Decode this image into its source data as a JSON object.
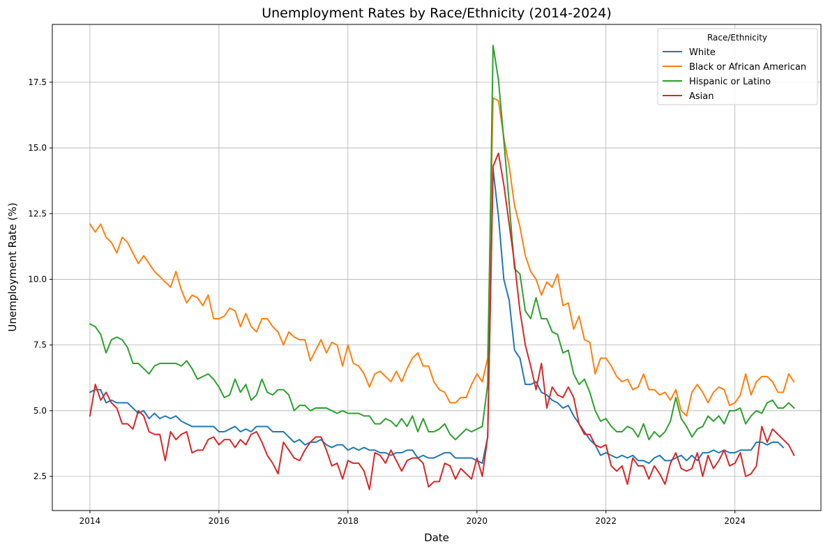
{
  "chart_data": {
    "type": "line",
    "title": "Unemployment Rates by Race/Ethnicity (2014-2024)",
    "xlabel": "Date",
    "ylabel": "Unemployment Rate (%)",
    "xlim": [
      "2013-06",
      "2025-05"
    ],
    "ylim": [
      1.2,
      19.7
    ],
    "x_ticks": [
      "2014",
      "2016",
      "2018",
      "2020",
      "2022",
      "2024"
    ],
    "y_ticks": [
      "2.5",
      "5.0",
      "7.5",
      "10.0",
      "12.5",
      "15.0",
      "17.5"
    ],
    "grid": true,
    "legend": {
      "title": "Race/Ethnicity",
      "position": "top-right"
    },
    "x_start": "2014-01",
    "x_frequency": "monthly",
    "series": [
      {
        "name": "White",
        "color": "#1f77b4",
        "values": [
          5.7,
          5.8,
          5.8,
          5.3,
          5.4,
          5.3,
          5.3,
          5.3,
          5.1,
          4.9,
          5.0,
          4.7,
          4.9,
          4.7,
          4.8,
          4.7,
          4.8,
          4.6,
          4.5,
          4.4,
          4.4,
          4.4,
          4.4,
          4.4,
          4.2,
          4.2,
          4.3,
          4.4,
          4.2,
          4.3,
          4.2,
          4.4,
          4.4,
          4.4,
          4.2,
          4.2,
          4.2,
          4.0,
          3.8,
          3.9,
          3.7,
          3.8,
          3.8,
          3.9,
          3.7,
          3.6,
          3.7,
          3.7,
          3.5,
          3.6,
          3.5,
          3.6,
          3.5,
          3.5,
          3.4,
          3.4,
          3.3,
          3.4,
          3.4,
          3.5,
          3.5,
          3.2,
          3.3,
          3.2,
          3.2,
          3.3,
          3.4,
          3.4,
          3.2,
          3.2,
          3.2,
          3.2,
          3.1,
          3.0,
          4.0,
          14.2,
          12.4,
          10.0,
          9.2,
          7.3,
          7.0,
          6.0,
          6.0,
          6.1,
          5.7,
          5.6,
          5.4,
          5.3,
          5.1,
          5.2,
          4.8,
          4.5,
          4.2,
          3.9,
          3.7,
          3.3,
          3.4,
          3.3,
          3.2,
          3.3,
          3.2,
          3.3,
          3.1,
          3.1,
          3.0,
          3.2,
          3.3,
          3.1,
          3.1,
          3.2,
          3.3,
          3.1,
          3.3,
          3.1,
          3.4,
          3.4,
          3.5,
          3.4,
          3.5,
          3.4,
          3.4,
          3.5,
          3.5,
          3.5,
          3.8,
          3.8,
          3.7,
          3.8,
          3.8,
          3.6
        ]
      },
      {
        "name": "Black or African American",
        "color": "#ff7f0e",
        "values": [
          12.1,
          11.8,
          12.1,
          11.6,
          11.4,
          11.0,
          11.6,
          11.4,
          11.0,
          10.6,
          10.9,
          10.6,
          10.3,
          10.1,
          9.9,
          9.7,
          10.3,
          9.6,
          9.1,
          9.4,
          9.3,
          9.0,
          9.4,
          8.5,
          8.5,
          8.6,
          8.9,
          8.8,
          8.2,
          8.7,
          8.2,
          8.0,
          8.5,
          8.5,
          8.2,
          8.0,
          7.5,
          8.0,
          7.8,
          7.7,
          7.7,
          6.9,
          7.3,
          7.7,
          7.2,
          7.6,
          7.5,
          6.7,
          7.5,
          6.8,
          6.7,
          6.4,
          5.9,
          6.4,
          6.5,
          6.3,
          6.1,
          6.5,
          6.1,
          6.6,
          7.0,
          7.2,
          6.7,
          6.7,
          6.1,
          5.8,
          5.7,
          5.3,
          5.3,
          5.5,
          5.5,
          6.0,
          6.4,
          6.1,
          7.0,
          16.9,
          16.8,
          15.4,
          14.3,
          12.8,
          12.0,
          10.9,
          10.3,
          10.0,
          9.4,
          9.9,
          9.7,
          10.2,
          9.0,
          9.1,
          8.1,
          8.6,
          7.7,
          7.6,
          6.4,
          7.0,
          7.0,
          6.7,
          6.3,
          6.1,
          6.2,
          5.8,
          5.9,
          6.4,
          5.8,
          5.8,
          5.6,
          5.7,
          5.4,
          5.8,
          5.0,
          4.8,
          5.7,
          6.0,
          5.7,
          5.3,
          5.7,
          5.9,
          5.8,
          5.2,
          5.3,
          5.6,
          6.4,
          5.6,
          6.1,
          6.3,
          6.3,
          6.1,
          5.7,
          5.7,
          6.4,
          6.1
        ]
      },
      {
        "name": "Hispanic or Latino",
        "color": "#2ca02c",
        "values": [
          8.3,
          8.2,
          7.9,
          7.2,
          7.7,
          7.8,
          7.7,
          7.4,
          6.8,
          6.8,
          6.6,
          6.4,
          6.7,
          6.8,
          6.8,
          6.8,
          6.8,
          6.7,
          6.9,
          6.6,
          6.2,
          6.3,
          6.4,
          6.2,
          5.9,
          5.5,
          5.6,
          6.2,
          5.7,
          6.0,
          5.4,
          5.6,
          6.2,
          5.7,
          5.6,
          5.8,
          5.8,
          5.6,
          5.0,
          5.2,
          5.2,
          5.0,
          5.1,
          5.1,
          5.1,
          5.0,
          4.9,
          5.0,
          4.9,
          4.9,
          4.9,
          4.8,
          4.8,
          4.5,
          4.5,
          4.7,
          4.6,
          4.4,
          4.7,
          4.4,
          4.8,
          4.2,
          4.7,
          4.2,
          4.2,
          4.3,
          4.5,
          4.1,
          3.9,
          4.1,
          4.3,
          4.2,
          4.3,
          4.4,
          6.0,
          18.9,
          17.6,
          15.3,
          12.9,
          10.4,
          10.2,
          8.8,
          8.5,
          9.3,
          8.5,
          8.5,
          8.0,
          7.9,
          7.2,
          7.3,
          6.4,
          6.0,
          6.2,
          5.7,
          5.0,
          4.6,
          4.7,
          4.4,
          4.2,
          4.2,
          4.4,
          4.3,
          4.0,
          4.5,
          3.9,
          4.2,
          4.0,
          4.2,
          4.6,
          5.5,
          4.7,
          4.4,
          4.0,
          4.3,
          4.4,
          4.8,
          4.6,
          4.8,
          4.5,
          5.0,
          5.0,
          5.1,
          4.5,
          4.8,
          5.0,
          4.9,
          5.3,
          5.4,
          5.1,
          5.1,
          5.3,
          5.1
        ]
      },
      {
        "name": "Asian",
        "color": "#d62728",
        "values": [
          4.8,
          6.0,
          5.4,
          5.7,
          5.3,
          5.1,
          4.5,
          4.5,
          4.3,
          5.0,
          4.8,
          4.2,
          4.1,
          4.1,
          3.1,
          4.2,
          3.9,
          4.1,
          4.2,
          3.4,
          3.5,
          3.5,
          3.9,
          4.0,
          3.7,
          3.9,
          3.9,
          3.6,
          3.9,
          3.7,
          4.1,
          4.2,
          3.8,
          3.3,
          3.0,
          2.6,
          3.8,
          3.5,
          3.2,
          3.1,
          3.5,
          3.8,
          4.0,
          4.0,
          3.5,
          2.9,
          3.0,
          2.4,
          3.1,
          3.0,
          3.0,
          2.7,
          2.0,
          3.4,
          3.3,
          3.0,
          3.5,
          3.1,
          2.7,
          3.1,
          3.2,
          3.2,
          3.0,
          2.1,
          2.3,
          2.3,
          3.0,
          2.9,
          2.4,
          2.8,
          2.6,
          2.4,
          3.2,
          2.5,
          4.0,
          14.3,
          14.8,
          13.6,
          12.1,
          10.6,
          8.8,
          7.5,
          6.7,
          5.8,
          6.8,
          5.1,
          5.9,
          5.6,
          5.5,
          5.9,
          5.5,
          4.5,
          4.1,
          4.1,
          3.7,
          3.6,
          3.7,
          2.9,
          2.7,
          2.9,
          2.2,
          3.2,
          2.9,
          2.9,
          2.4,
          2.9,
          2.6,
          2.2,
          3.0,
          3.4,
          2.8,
          2.7,
          2.8,
          3.4,
          2.5,
          3.3,
          2.8,
          3.1,
          3.5,
          2.9,
          3.0,
          3.4,
          2.5,
          2.6,
          2.9,
          4.4,
          3.8,
          4.3,
          4.1,
          3.9,
          3.7,
          3.3
        ]
      }
    ]
  }
}
